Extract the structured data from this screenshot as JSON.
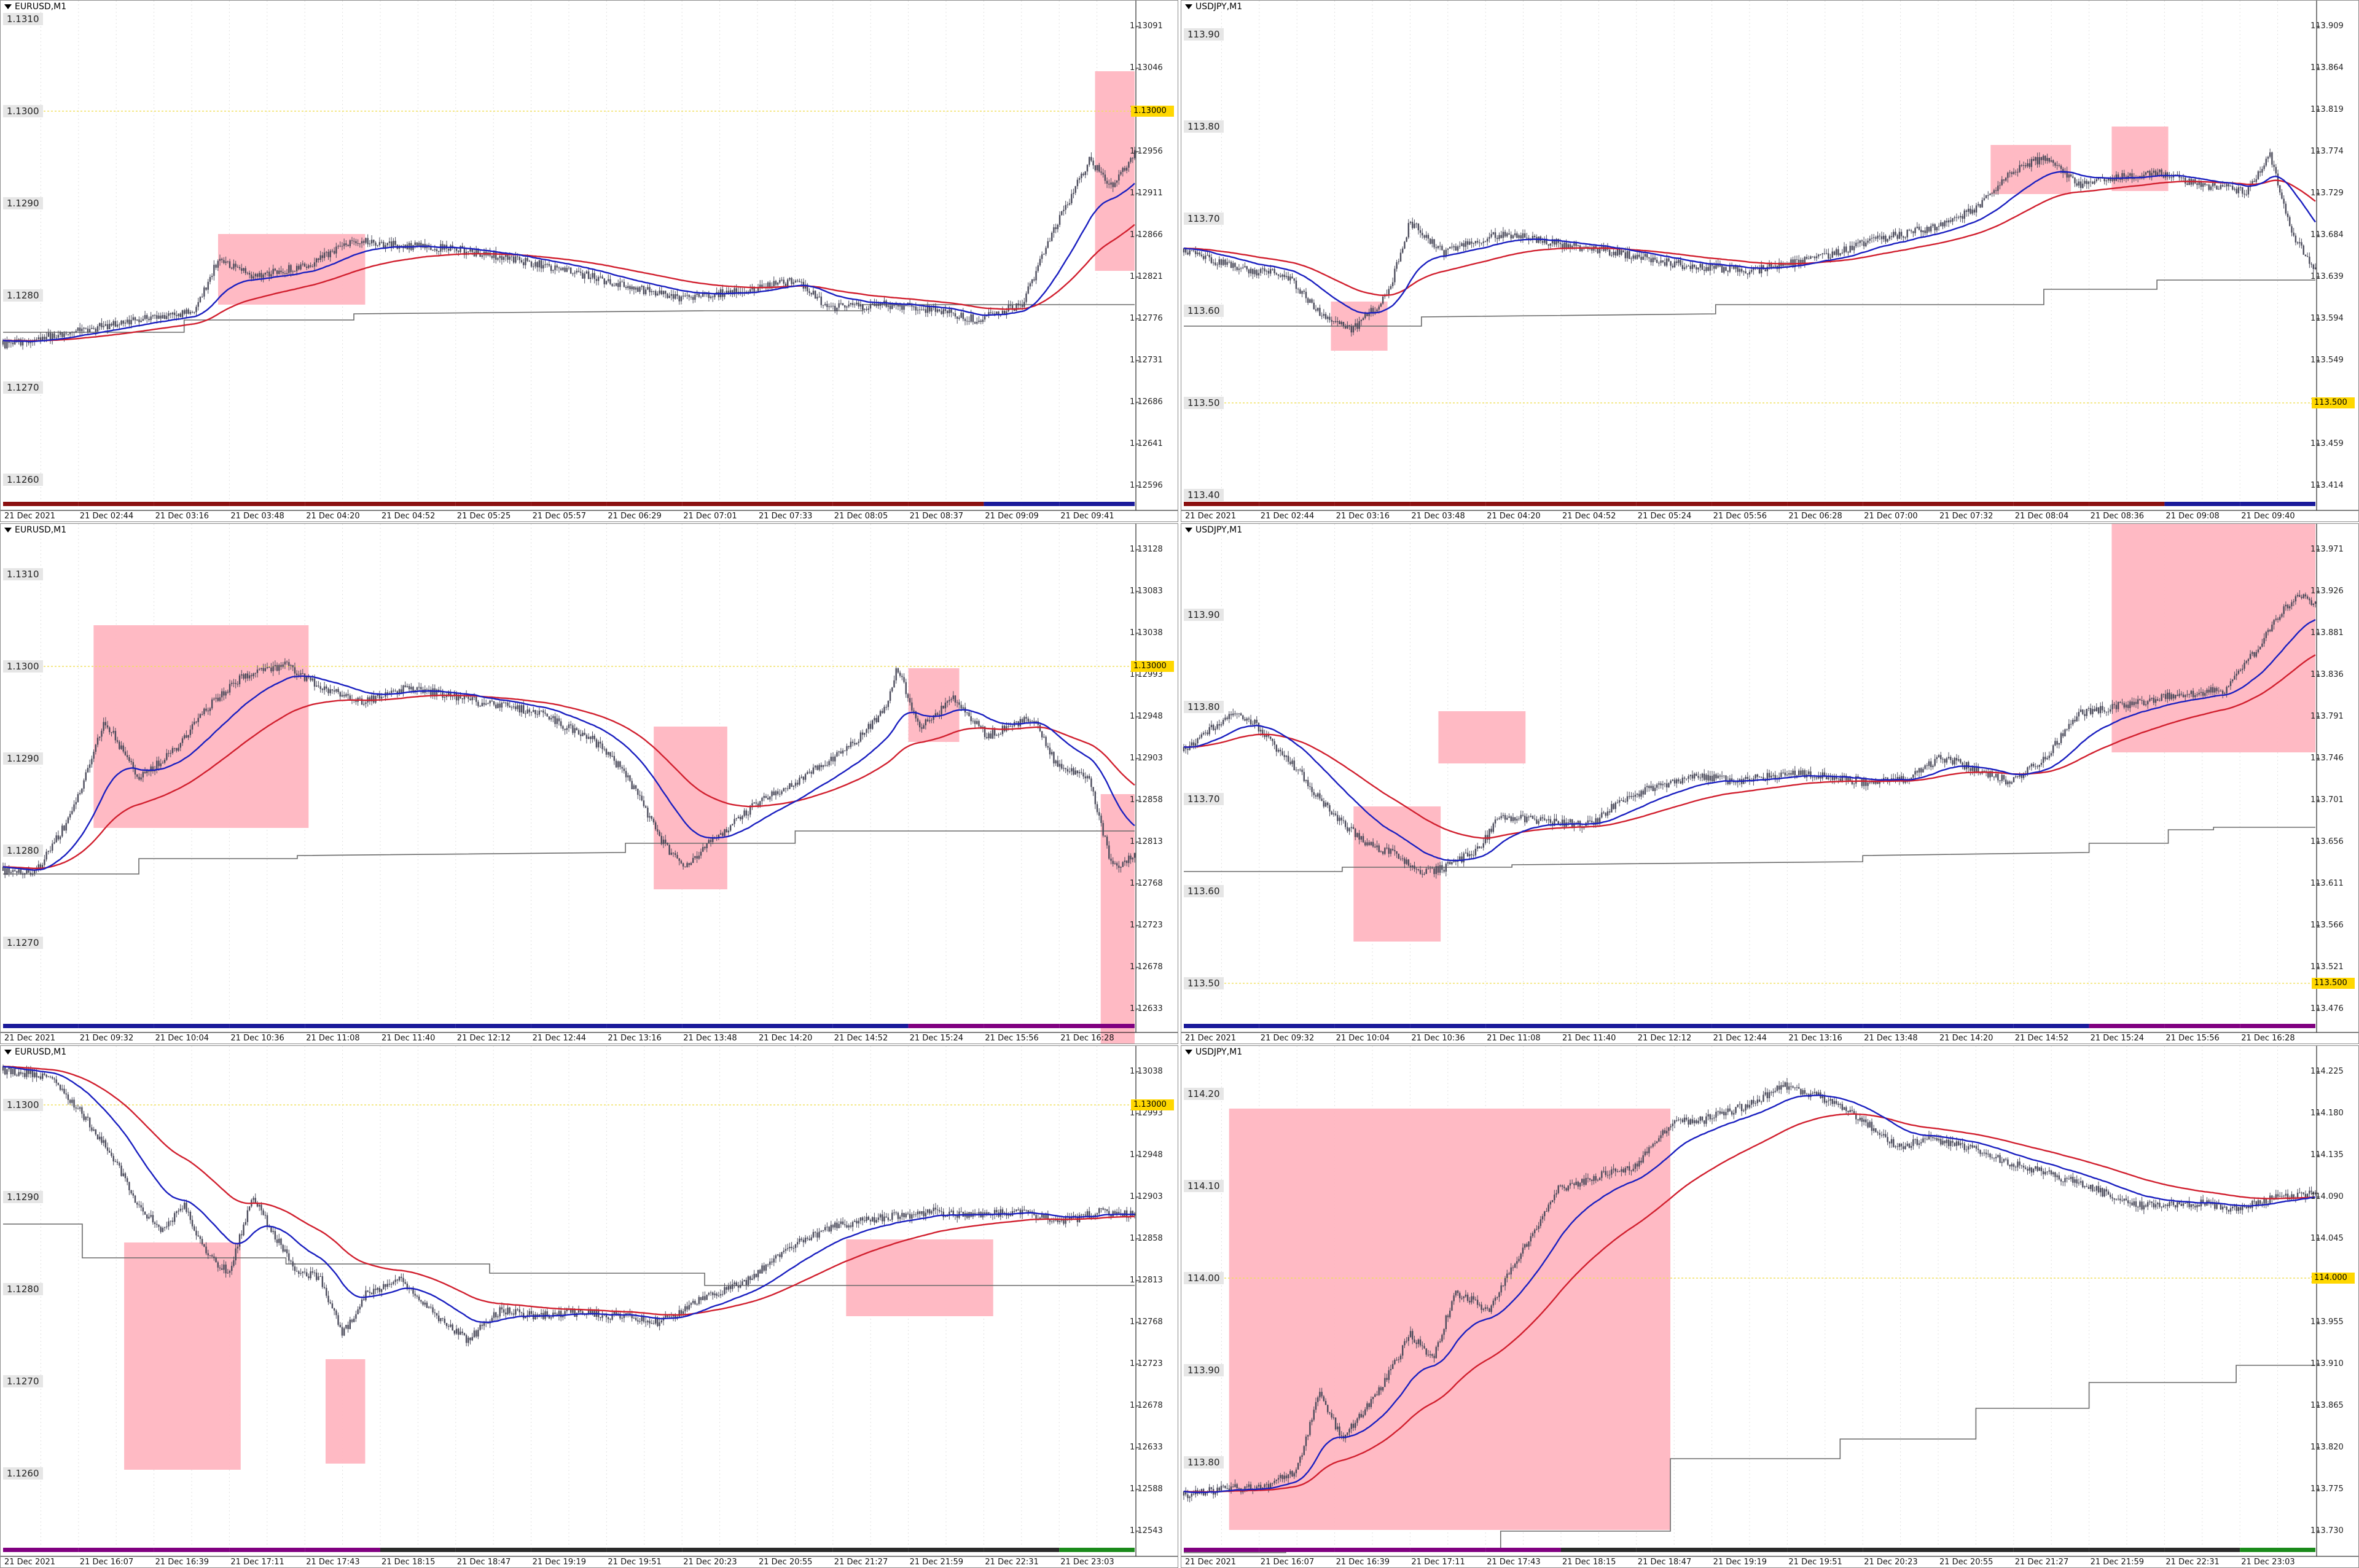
{
  "colors": {
    "ma_red": "#d11f2e",
    "ma_blue": "#1a1fc0",
    "step": "#6a6a6a",
    "candle": "#4a4a5a",
    "box": "#ffb6c1",
    "grid": "#e0e0e0",
    "level": "#f0e060",
    "price_tag": "#ffd700"
  },
  "panels": [
    {
      "id": "p1",
      "title": "EURUSD,M1",
      "left_labels": [
        "1.1310",
        "1.1300",
        "1.1290",
        "1.1280",
        "1.1270",
        "1.1260"
      ],
      "right_labels": [
        "1.13091",
        "1.13046",
        "1.13001",
        "1.12956",
        "1.12911",
        "1.12866",
        "1.12821",
        "1.12776",
        "1.12731",
        "1.12686",
        "1.12641",
        "1.12596"
      ],
      "current_price": "1.13000",
      "time_labels": [
        "21 Dec 2021",
        "21 Dec 02:44",
        "21 Dec 03:16",
        "21 Dec 03:48",
        "21 Dec 04:20",
        "21 Dec 04:52",
        "21 Dec 05:25",
        "21 Dec 05:57",
        "21 Dec 06:29",
        "21 Dec 07:01",
        "21 Dec 07:33",
        "21 Dec 08:05",
        "21 Dec 08:37",
        "21 Dec 09:09",
        "21 Dec 09:41"
      ],
      "session_bar": [
        "#8b1010",
        "#8b1010",
        "#8b1010",
        "#8b1010",
        "#8b1010",
        "#8b1010",
        "#8b1010",
        "#8b1010",
        "#8b1010",
        "#8b1010",
        "#8b1010",
        "#8b1010",
        "#8b1010",
        "#1a1a9a",
        "#1a1a9a"
      ]
    },
    {
      "id": "p2",
      "title": "USDJPY,M1",
      "left_labels": [
        "113.90",
        "113.80",
        "113.70",
        "113.60",
        "113.50",
        "113.40"
      ],
      "right_labels": [
        "113.909",
        "113.864",
        "113.819",
        "113.774",
        "113.729",
        "113.684",
        "113.639",
        "113.594",
        "113.549",
        "113.504",
        "113.459",
        "113.414"
      ],
      "current_price": "113.500",
      "time_labels": [
        "21 Dec 2021",
        "21 Dec 02:44",
        "21 Dec 03:16",
        "21 Dec 03:48",
        "21 Dec 04:20",
        "21 Dec 04:52",
        "21 Dec 05:24",
        "21 Dec 05:56",
        "21 Dec 06:28",
        "21 Dec 07:00",
        "21 Dec 07:32",
        "21 Dec 08:04",
        "21 Dec 08:36",
        "21 Dec 09:08",
        "21 Dec 09:40"
      ],
      "session_bar": [
        "#8b1010",
        "#8b1010",
        "#8b1010",
        "#8b1010",
        "#8b1010",
        "#8b1010",
        "#8b1010",
        "#8b1010",
        "#8b1010",
        "#8b1010",
        "#8b1010",
        "#8b1010",
        "#8b1010",
        "#1a1a9a",
        "#1a1a9a"
      ]
    },
    {
      "id": "p3",
      "title": "EURUSD,M1",
      "left_labels": [
        "1.1310",
        "1.1300",
        "1.1290",
        "1.1280",
        "1.1270"
      ],
      "right_labels": [
        "1.13128",
        "1.13083",
        "1.13038",
        "1.12993",
        "1.12948",
        "1.12903",
        "1.12858",
        "1.12813",
        "1.12768",
        "1.12723",
        "1.12678",
        "1.12633"
      ],
      "current_price": "1.13000",
      "time_labels": [
        "21 Dec 2021",
        "21 Dec 09:32",
        "21 Dec 10:04",
        "21 Dec 10:36",
        "21 Dec 11:08",
        "21 Dec 11:40",
        "21 Dec 12:12",
        "21 Dec 12:44",
        "21 Dec 13:16",
        "21 Dec 13:48",
        "21 Dec 14:20",
        "21 Dec 14:52",
        "21 Dec 15:24",
        "21 Dec 15:56",
        "21 Dec 16:28"
      ],
      "session_bar": [
        "#1a1a9a",
        "#1a1a9a",
        "#1a1a9a",
        "#1a1a9a",
        "#1a1a9a",
        "#1a1a9a",
        "#1a1a9a",
        "#1a1a9a",
        "#1a1a9a",
        "#1a1a9a",
        "#1a1a9a",
        "#1a1a9a",
        "#800080",
        "#800080",
        "#800080"
      ]
    },
    {
      "id": "p4",
      "title": "USDJPY,M1",
      "left_labels": [
        "113.90",
        "113.80",
        "113.70",
        "113.60",
        "113.50"
      ],
      "right_labels": [
        "113.971",
        "113.926",
        "113.881",
        "113.836",
        "113.791",
        "113.746",
        "113.701",
        "113.656",
        "113.611",
        "113.566",
        "113.521",
        "113.476"
      ],
      "current_price": "113.500",
      "time_labels": [
        "21 Dec 2021",
        "21 Dec 09:32",
        "21 Dec 10:04",
        "21 Dec 10:36",
        "21 Dec 11:08",
        "21 Dec 11:40",
        "21 Dec 12:12",
        "21 Dec 12:44",
        "21 Dec 13:16",
        "21 Dec 13:48",
        "21 Dec 14:20",
        "21 Dec 14:52",
        "21 Dec 15:24",
        "21 Dec 15:56",
        "21 Dec 16:28"
      ],
      "session_bar": [
        "#1a1a9a",
        "#1a1a9a",
        "#1a1a9a",
        "#1a1a9a",
        "#1a1a9a",
        "#1a1a9a",
        "#1a1a9a",
        "#1a1a9a",
        "#1a1a9a",
        "#1a1a9a",
        "#1a1a9a",
        "#1a1a9a",
        "#800080",
        "#800080",
        "#800080"
      ]
    },
    {
      "id": "p5",
      "title": "EURUSD,M1",
      "left_labels": [
        "1.1300",
        "1.1290",
        "1.1280",
        "1.1270",
        "1.1260"
      ],
      "right_labels": [
        "1.13038",
        "1.12993",
        "1.12948",
        "1.12903",
        "1.12858",
        "1.12813",
        "1.12768",
        "1.12723",
        "1.12678",
        "1.12633",
        "1.12588",
        "1.12543"
      ],
      "current_price": "1.13000",
      "time_labels": [
        "21 Dec 2021",
        "21 Dec 16:07",
        "21 Dec 16:39",
        "21 Dec 17:11",
        "21 Dec 17:43",
        "21 Dec 18:15",
        "21 Dec 18:47",
        "21 Dec 19:19",
        "21 Dec 19:51",
        "21 Dec 20:23",
        "21 Dec 20:55",
        "21 Dec 21:27",
        "21 Dec 21:59",
        "21 Dec 22:31",
        "21 Dec 23:03"
      ],
      "session_bar": [
        "#800080",
        "#800080",
        "#800080",
        "#800080",
        "#800080",
        "#2a2a2a",
        "#2a2a2a",
        "#2a2a2a",
        "#2a2a2a",
        "#2a2a2a",
        "#2a2a2a",
        "#2a2a2a",
        "#2a2a2a",
        "#2a2a2a",
        "#1a8a1a"
      ]
    },
    {
      "id": "p6",
      "title": "USDJPY,M1",
      "left_labels": [
        "114.20",
        "114.10",
        "114.00",
        "113.90",
        "113.80"
      ],
      "right_labels": [
        "114.225",
        "114.180",
        "114.135",
        "114.090",
        "114.045",
        "114.000",
        "113.955",
        "113.910",
        "113.865",
        "113.820",
        "113.775",
        "113.730"
      ],
      "current_price": "114.000",
      "time_labels": [
        "21 Dec 2021",
        "21 Dec 16:07",
        "21 Dec 16:39",
        "21 Dec 17:11",
        "21 Dec 17:43",
        "21 Dec 18:15",
        "21 Dec 18:47",
        "21 Dec 19:19",
        "21 Dec 19:51",
        "21 Dec 20:23",
        "21 Dec 20:55",
        "21 Dec 21:27",
        "21 Dec 21:59",
        "21 Dec 22:31",
        "21 Dec 23:03"
      ],
      "session_bar": [
        "#800080",
        "#800080",
        "#800080",
        "#800080",
        "#800080",
        "#2a2a2a",
        "#2a2a2a",
        "#2a2a2a",
        "#2a2a2a",
        "#2a2a2a",
        "#2a2a2a",
        "#2a2a2a",
        "#2a2a2a",
        "#2a2a2a",
        "#1a8a1a"
      ]
    }
  ]
}
